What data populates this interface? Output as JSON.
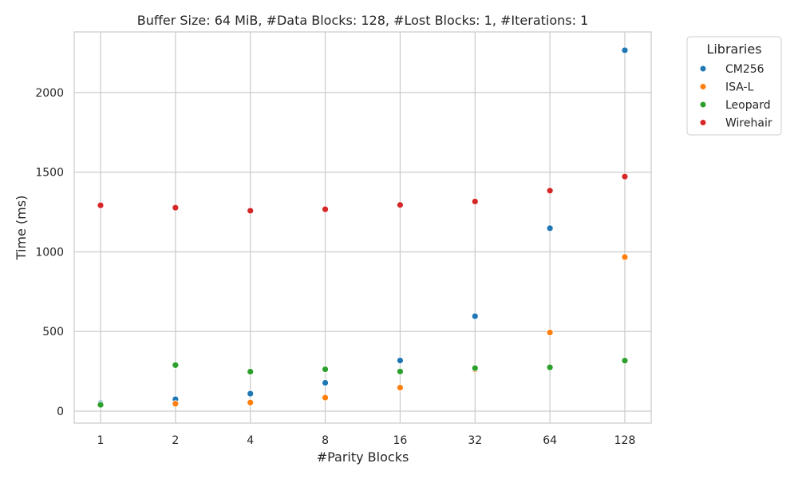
{
  "chart_data": {
    "type": "scatter",
    "title": "Buffer Size: 64 MiB, #Data Blocks: 128, #Lost Blocks: 1, #Iterations: 1",
    "xlabel": "#Parity Blocks",
    "ylabel": "Time (ms)",
    "x_scale": "log2",
    "categories": [
      "1",
      "2",
      "4",
      "8",
      "16",
      "32",
      "64",
      "128"
    ],
    "x": [
      1,
      2,
      4,
      8,
      16,
      32,
      64,
      128
    ],
    "ylim": [
      -75,
      2380
    ],
    "yticks": [
      0,
      500,
      1000,
      1500,
      2000
    ],
    "grid": true,
    "legend": {
      "title": "Libraries",
      "placement": "outside-top-right"
    },
    "series": [
      {
        "name": "CM256",
        "color": "#1f77b4",
        "values": [
          50,
          75,
          110,
          178,
          318,
          596,
          1148,
          2265
        ]
      },
      {
        "name": "ISA-L",
        "color": "#ff7f0e",
        "values": [
          42,
          47,
          54,
          85,
          148,
          262,
          494,
          967
        ]
      },
      {
        "name": "Leopard",
        "color": "#2ca02c",
        "values": [
          40,
          289,
          248,
          263,
          249,
          270,
          275,
          317
        ]
      },
      {
        "name": "Wirehair",
        "color": "#d62728",
        "values": [
          1292,
          1277,
          1258,
          1267,
          1294,
          1316,
          1384,
          1472
        ]
      }
    ]
  }
}
